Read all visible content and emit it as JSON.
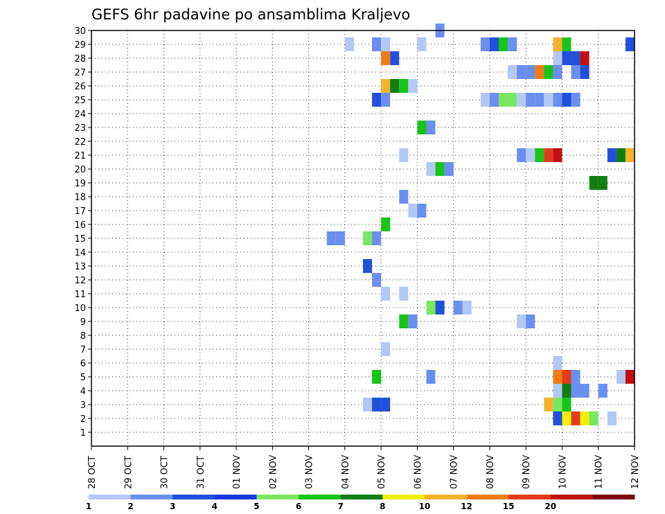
{
  "chart_data": {
    "type": "heatmap",
    "title": "GEFS 6hr padavine po ansamblima Kraljevo",
    "x_range": [
      "2012-10-28",
      "2012-11-12"
    ],
    "x_ticks": [
      "28 OCT",
      "29 OCT",
      "30 OCT",
      "31 OCT",
      "01 NOV",
      "02 NOV",
      "03 NOV",
      "04 NOV",
      "05 NOV",
      "06 NOV",
      "07 NOV",
      "08 NOV",
      "09 NOV",
      "10 NOV",
      "11 NOV",
      "12 NOV"
    ],
    "y_ticks": [
      "1",
      "2",
      "3",
      "4",
      "5",
      "6",
      "7",
      "8",
      "9",
      "10",
      "11",
      "12",
      "13",
      "14",
      "15",
      "16",
      "17",
      "18",
      "19",
      "20",
      "21",
      "22",
      "23",
      "24",
      "25",
      "26",
      "27",
      "28",
      "29",
      "30"
    ],
    "grid": true,
    "legend_placement": "bottom",
    "legend": {
      "colors": [
        "#b4c8f5",
        "#6a8ff0",
        "#2250db",
        "#1a38e0",
        "#78e860",
        "#18c418",
        "#107e10",
        "#f0f000",
        "#f5b22c",
        "#f07c14",
        "#e03c1c",
        "#c01010",
        "#7c0810"
      ],
      "labels": [
        "1",
        "2",
        "3",
        "4",
        "5",
        "6",
        "7",
        "8",
        "10",
        "12",
        "15",
        "20"
      ]
    },
    "cells": [
      {
        "t": "2012-11-04 00:00",
        "m": 29,
        "v": 1
      },
      {
        "t": "2012-11-04 18:00",
        "m": 29,
        "v": 2
      },
      {
        "t": "2012-11-05 00:00",
        "m": 29,
        "v": 1
      },
      {
        "t": "2012-11-06 00:00",
        "m": 29,
        "v": 1
      },
      {
        "t": "2012-11-07 18:00",
        "m": 29,
        "v": 2
      },
      {
        "t": "2012-11-08 00:00",
        "m": 29,
        "v": 3
      },
      {
        "t": "2012-11-08 06:00",
        "m": 29,
        "v": 6
      },
      {
        "t": "2012-11-08 12:00",
        "m": 29,
        "v": 2
      },
      {
        "t": "2012-11-09 18:00",
        "m": 29,
        "v": 10
      },
      {
        "t": "2012-11-10 00:00",
        "m": 29,
        "v": 6
      },
      {
        "t": "2012-11-11 18:00",
        "m": 29,
        "v": 3
      },
      {
        "t": "2012-11-06 12:00",
        "m": 30,
        "v": 2
      },
      {
        "t": "2012-11-05 00:00",
        "m": 28,
        "v": 12
      },
      {
        "t": "2012-11-05 06:00",
        "m": 28,
        "v": 3
      },
      {
        "t": "2012-11-09 18:00",
        "m": 28,
        "v": 1
      },
      {
        "t": "2012-11-10 00:00",
        "m": 28,
        "v": 3
      },
      {
        "t": "2012-11-10 06:00",
        "m": 28,
        "v": 3
      },
      {
        "t": "2012-11-10 12:00",
        "m": 28,
        "v": 20
      },
      {
        "t": "2012-11-08 12:00",
        "m": 27,
        "v": 1
      },
      {
        "t": "2012-11-08 18:00",
        "m": 27,
        "v": 2
      },
      {
        "t": "2012-11-09 00:00",
        "m": 27,
        "v": 2
      },
      {
        "t": "2012-11-09 06:00",
        "m": 27,
        "v": 12
      },
      {
        "t": "2012-11-09 12:00",
        "m": 27,
        "v": 6
      },
      {
        "t": "2012-11-09 18:00",
        "m": 27,
        "v": 2
      },
      {
        "t": "2012-11-10 06:00",
        "m": 27,
        "v": 2
      },
      {
        "t": "2012-11-10 12:00",
        "m": 27,
        "v": 3
      },
      {
        "t": "2012-11-05 00:00",
        "m": 26,
        "v": 10
      },
      {
        "t": "2012-11-05 06:00",
        "m": 26,
        "v": 7
      },
      {
        "t": "2012-11-05 12:00",
        "m": 26,
        "v": 6
      },
      {
        "t": "2012-11-05 18:00",
        "m": 26,
        "v": 1
      },
      {
        "t": "2012-11-04 18:00",
        "m": 25,
        "v": 3
      },
      {
        "t": "2012-11-05 00:00",
        "m": 25,
        "v": 2
      },
      {
        "t": "2012-11-07 18:00",
        "m": 25,
        "v": 1
      },
      {
        "t": "2012-11-08 00:00",
        "m": 25,
        "v": 2
      },
      {
        "t": "2012-11-08 06:00",
        "m": 25,
        "v": 5
      },
      {
        "t": "2012-11-08 12:00",
        "m": 25,
        "v": 5
      },
      {
        "t": "2012-11-08 18:00",
        "m": 25,
        "v": 1
      },
      {
        "t": "2012-11-09 00:00",
        "m": 25,
        "v": 2
      },
      {
        "t": "2012-11-09 06:00",
        "m": 25,
        "v": 2
      },
      {
        "t": "2012-11-09 12:00",
        "m": 25,
        "v": 1
      },
      {
        "t": "2012-11-09 18:00",
        "m": 25,
        "v": 2
      },
      {
        "t": "2012-11-10 00:00",
        "m": 25,
        "v": 3
      },
      {
        "t": "2012-11-10 06:00",
        "m": 25,
        "v": 2
      },
      {
        "t": "2012-11-06 00:00",
        "m": 23,
        "v": 6
      },
      {
        "t": "2012-11-06 06:00",
        "m": 23,
        "v": 2
      },
      {
        "t": "2012-11-05 12:00",
        "m": 21,
        "v": 1
      },
      {
        "t": "2012-11-08 18:00",
        "m": 21,
        "v": 2
      },
      {
        "t": "2012-11-09 00:00",
        "m": 21,
        "v": 1
      },
      {
        "t": "2012-11-09 06:00",
        "m": 21,
        "v": 6
      },
      {
        "t": "2012-11-09 12:00",
        "m": 21,
        "v": 15
      },
      {
        "t": "2012-11-09 18:00",
        "m": 21,
        "v": 20
      },
      {
        "t": "2012-11-11 06:00",
        "m": 21,
        "v": 3
      },
      {
        "t": "2012-11-11 12:00",
        "m": 21,
        "v": 7
      },
      {
        "t": "2012-11-11 18:00",
        "m": 21,
        "v": 10
      },
      {
        "t": "2012-11-06 06:00",
        "m": 20,
        "v": 1
      },
      {
        "t": "2012-11-06 12:00",
        "m": 20,
        "v": 6
      },
      {
        "t": "2012-11-06 18:00",
        "m": 20,
        "v": 2
      },
      {
        "t": "2012-11-10 18:00",
        "m": 19,
        "v": 7
      },
      {
        "t": "2012-11-11 00:00",
        "m": 19,
        "v": 7
      },
      {
        "t": "2012-11-05 12:00",
        "m": 18,
        "v": 2
      },
      {
        "t": "2012-11-05 18:00",
        "m": 17,
        "v": 1
      },
      {
        "t": "2012-11-06 00:00",
        "m": 17,
        "v": 2
      },
      {
        "t": "2012-11-05 00:00",
        "m": 16,
        "v": 6
      },
      {
        "t": "2012-11-03 12:00",
        "m": 15,
        "v": 2
      },
      {
        "t": "2012-11-03 18:00",
        "m": 15,
        "v": 2
      },
      {
        "t": "2012-11-04 12:00",
        "m": 15,
        "v": 5
      },
      {
        "t": "2012-11-04 18:00",
        "m": 15,
        "v": 2
      },
      {
        "t": "2012-11-04 12:00",
        "m": 13,
        "v": 3
      },
      {
        "t": "2012-11-04 18:00",
        "m": 12,
        "v": 2
      },
      {
        "t": "2012-11-05 00:00",
        "m": 11,
        "v": 1
      },
      {
        "t": "2012-11-05 12:00",
        "m": 11,
        "v": 1
      },
      {
        "t": "2012-11-06 06:00",
        "m": 10,
        "v": 5
      },
      {
        "t": "2012-11-06 12:00",
        "m": 10,
        "v": 3
      },
      {
        "t": "2012-11-07 00:00",
        "m": 10,
        "v": 2
      },
      {
        "t": "2012-11-07 06:00",
        "m": 10,
        "v": 1
      },
      {
        "t": "2012-11-05 12:00",
        "m": 9,
        "v": 6
      },
      {
        "t": "2012-11-05 18:00",
        "m": 9,
        "v": 2
      },
      {
        "t": "2012-11-08 18:00",
        "m": 9,
        "v": 1
      },
      {
        "t": "2012-11-09 00:00",
        "m": 9,
        "v": 2
      },
      {
        "t": "2012-11-05 00:00",
        "m": 7,
        "v": 1
      },
      {
        "t": "2012-11-09 18:00",
        "m": 6,
        "v": 1
      },
      {
        "t": "2012-11-04 18:00",
        "m": 5,
        "v": 6
      },
      {
        "t": "2012-11-06 06:00",
        "m": 5,
        "v": 2
      },
      {
        "t": "2012-11-09 18:00",
        "m": 5,
        "v": 12
      },
      {
        "t": "2012-11-10 00:00",
        "m": 5,
        "v": 15
      },
      {
        "t": "2012-11-10 06:00",
        "m": 5,
        "v": 2
      },
      {
        "t": "2012-11-11 12:00",
        "m": 5,
        "v": 1
      },
      {
        "t": "2012-11-11 18:00",
        "m": 5,
        "v": 20
      },
      {
        "t": "2012-11-09 18:00",
        "m": 4,
        "v": 1
      },
      {
        "t": "2012-11-10 00:00",
        "m": 4,
        "v": 7
      },
      {
        "t": "2012-11-10 06:00",
        "m": 4,
        "v": 2
      },
      {
        "t": "2012-11-10 12:00",
        "m": 4,
        "v": 2
      },
      {
        "t": "2012-11-11 00:00",
        "m": 4,
        "v": 2
      },
      {
        "t": "2012-11-04 12:00",
        "m": 3,
        "v": 1
      },
      {
        "t": "2012-11-04 18:00",
        "m": 3,
        "v": 3
      },
      {
        "t": "2012-11-05 00:00",
        "m": 3,
        "v": 3
      },
      {
        "t": "2012-11-09 12:00",
        "m": 3,
        "v": 10
      },
      {
        "t": "2012-11-09 18:00",
        "m": 3,
        "v": 5
      },
      {
        "t": "2012-11-10 00:00",
        "m": 3,
        "v": 6
      },
      {
        "t": "2012-11-09 18:00",
        "m": 2,
        "v": 3
      },
      {
        "t": "2012-11-10 00:00",
        "m": 2,
        "v": 8
      },
      {
        "t": "2012-11-10 06:00",
        "m": 2,
        "v": 15
      },
      {
        "t": "2012-11-10 12:00",
        "m": 2,
        "v": 8
      },
      {
        "t": "2012-11-10 18:00",
        "m": 2,
        "v": 5
      },
      {
        "t": "2012-11-11 06:00",
        "m": 2,
        "v": 1
      }
    ]
  }
}
